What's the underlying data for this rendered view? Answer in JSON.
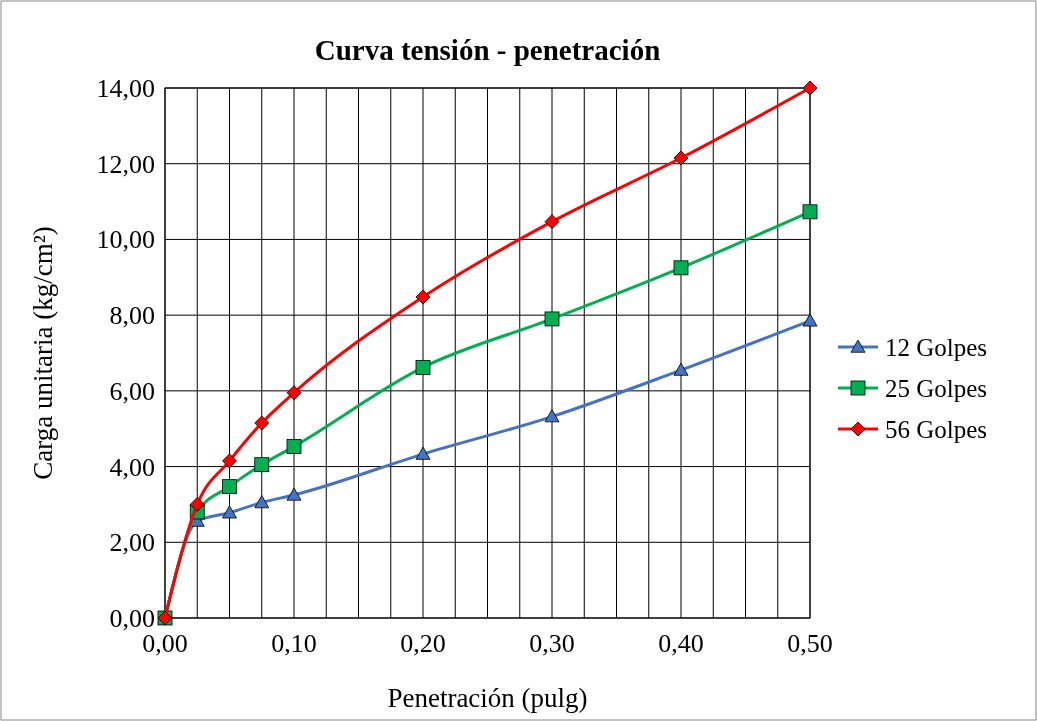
{
  "chart_data": {
    "type": "line",
    "title": "Curva tensión - penetración",
    "xlabel": "Penetración (pulg)",
    "ylabel": "Carga unitaria (kg/cm²)",
    "x": [
      0,
      0.025,
      0.05,
      0.075,
      0.1,
      0.2,
      0.3,
      0.4,
      0.5
    ],
    "series": [
      {
        "name": "12 Golpes",
        "color": "#4472c4",
        "marker": "triangle",
        "values": [
          0,
          2.56,
          2.78,
          3.05,
          3.25,
          4.33,
          5.32,
          6.55,
          7.85
        ]
      },
      {
        "name": "25 Golpes",
        "color": "#00b050",
        "marker": "square",
        "values": [
          0,
          2.8,
          3.47,
          4.05,
          4.53,
          6.62,
          7.9,
          9.25,
          10.73
        ]
      },
      {
        "name": "56 Golpes",
        "color": "#ff0000",
        "marker": "diamond",
        "values": [
          0,
          3.0,
          4.15,
          5.15,
          5.95,
          8.48,
          10.47,
          12.15,
          14.0
        ]
      }
    ],
    "xlim": [
      0,
      0.5
    ],
    "ylim": [
      0,
      14
    ],
    "xticks": [
      {
        "value": 0,
        "label": "0,00"
      },
      {
        "value": 0.025,
        "label": null
      },
      {
        "value": 0.05,
        "label": null
      },
      {
        "value": 0.075,
        "label": null
      },
      {
        "value": 0.1,
        "label": "0,10"
      },
      {
        "value": 0.125,
        "label": null
      },
      {
        "value": 0.15,
        "label": null
      },
      {
        "value": 0.175,
        "label": null
      },
      {
        "value": 0.2,
        "label": "0,20"
      },
      {
        "value": 0.225,
        "label": null
      },
      {
        "value": 0.25,
        "label": null
      },
      {
        "value": 0.275,
        "label": null
      },
      {
        "value": 0.3,
        "label": "0,30"
      },
      {
        "value": 0.325,
        "label": null
      },
      {
        "value": 0.35,
        "label": null
      },
      {
        "value": 0.375,
        "label": null
      },
      {
        "value": 0.4,
        "label": "0,40"
      },
      {
        "value": 0.425,
        "label": null
      },
      {
        "value": 0.45,
        "label": null
      },
      {
        "value": 0.475,
        "label": null
      },
      {
        "value": 0.5,
        "label": "0,50"
      }
    ],
    "yticks": [
      {
        "value": 0,
        "label": "0,00"
      },
      {
        "value": 2,
        "label": "2,00"
      },
      {
        "value": 4,
        "label": "4,00"
      },
      {
        "value": 6,
        "label": "6,00"
      },
      {
        "value": 8,
        "label": "8,00"
      },
      {
        "value": 10,
        "label": "10,00"
      },
      {
        "value": 12,
        "label": "12,00"
      },
      {
        "value": 14,
        "label": "14,00"
      }
    ],
    "grid": true,
    "legend": "right",
    "line_style": "solid"
  }
}
